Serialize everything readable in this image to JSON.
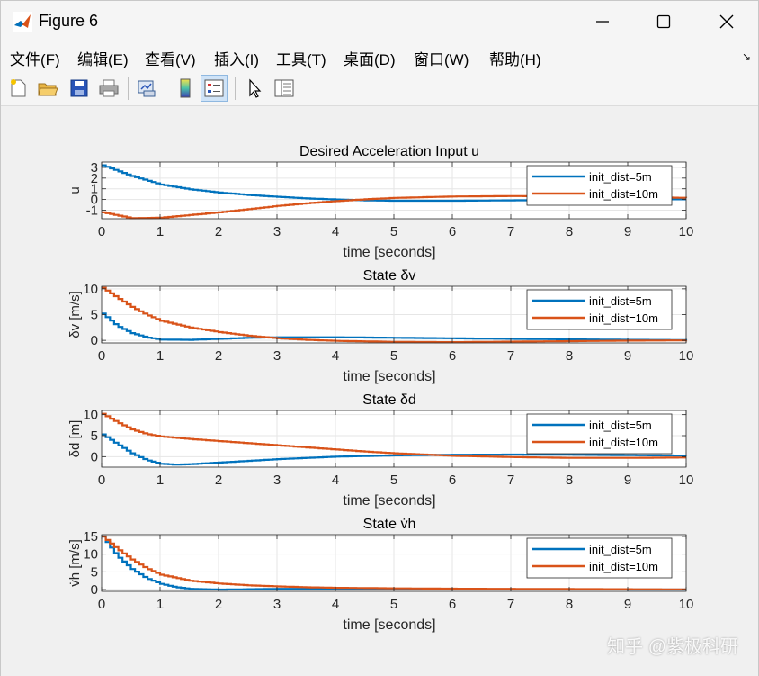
{
  "window": {
    "title": "Figure 6"
  },
  "menu": [
    {
      "label": "文件(F)"
    },
    {
      "label": "编辑(E)"
    },
    {
      "label": "查看(V)"
    },
    {
      "label": "插入(I)"
    },
    {
      "label": "工具(T)"
    },
    {
      "label": "桌面(D)"
    },
    {
      "label": "窗口(W)"
    },
    {
      "label": "帮助(H)"
    }
  ],
  "toolbar": [
    {
      "icon": "new-figure-icon"
    },
    {
      "icon": "open-file-icon"
    },
    {
      "icon": "save-icon"
    },
    {
      "icon": "print-icon"
    },
    {
      "icon": "link-plot-icon"
    },
    {
      "icon": "colorbar-icon"
    },
    {
      "icon": "legend-icon"
    },
    {
      "icon": "edit-plot-pointer-icon"
    },
    {
      "icon": "property-inspector-icon"
    }
  ],
  "watermark": "知乎 @紫极科研",
  "colors": {
    "series1": "#0072BD",
    "series2": "#D95319"
  },
  "chart_data": [
    {
      "type": "line",
      "title": "Desired Acceleration Input u",
      "xlabel": "time [seconds]",
      "ylabel": "u",
      "xlim": [
        0,
        10
      ],
      "ylim": [
        -1.8,
        3.5
      ],
      "yticks": [
        -1,
        0,
        1,
        2,
        3
      ],
      "xticks": [
        0,
        1,
        2,
        3,
        4,
        5,
        6,
        7,
        8,
        9,
        10
      ],
      "grid": true,
      "legend": "top-right",
      "series": [
        {
          "name": "init_dist=5m",
          "x": [
            0,
            0.5,
            1,
            1.5,
            2,
            2.5,
            3,
            3.5,
            4,
            4.5,
            5,
            6,
            7,
            8,
            9,
            10
          ],
          "y": [
            3.2,
            2.2,
            1.4,
            0.95,
            0.65,
            0.42,
            0.25,
            0.1,
            0.0,
            -0.08,
            -0.12,
            -0.12,
            -0.08,
            -0.04,
            0.0,
            0.02
          ]
        },
        {
          "name": "init_dist=10m",
          "x": [
            0,
            0.5,
            1,
            1.5,
            2,
            2.5,
            3,
            3.5,
            4,
            4.5,
            5,
            6,
            7,
            8,
            9,
            10
          ],
          "y": [
            -1.2,
            -1.75,
            -1.7,
            -1.45,
            -1.2,
            -0.9,
            -0.6,
            -0.35,
            -0.15,
            0.02,
            0.15,
            0.28,
            0.32,
            0.3,
            0.25,
            0.15
          ]
        }
      ]
    },
    {
      "type": "line",
      "title": "State δv",
      "xlabel": "time [seconds]",
      "ylabel": "δv [m/s]",
      "xlim": [
        0,
        10
      ],
      "ylim": [
        -0.5,
        10.5
      ],
      "yticks": [
        0,
        5,
        10
      ],
      "xticks": [
        0,
        1,
        2,
        3,
        4,
        5,
        6,
        7,
        8,
        9,
        10
      ],
      "grid": true,
      "legend": "top-right",
      "series": [
        {
          "name": "init_dist=5m",
          "x": [
            0,
            0.25,
            0.5,
            0.75,
            1,
            1.5,
            2,
            2.5,
            3,
            4,
            5,
            6,
            7,
            8,
            9,
            10
          ],
          "y": [
            5.2,
            2.8,
            1.4,
            0.6,
            0.15,
            0.1,
            0.3,
            0.5,
            0.6,
            0.6,
            0.5,
            0.4,
            0.3,
            0.2,
            0.1,
            0.05
          ]
        },
        {
          "name": "init_dist=10m",
          "x": [
            0,
            0.25,
            0.5,
            0.75,
            1,
            1.5,
            2,
            2.5,
            3,
            3.5,
            4,
            5,
            6,
            7,
            8,
            9,
            10
          ],
          "y": [
            10.2,
            8.3,
            6.5,
            5.0,
            3.8,
            2.5,
            1.6,
            0.9,
            0.4,
            0.1,
            -0.1,
            -0.3,
            -0.35,
            -0.25,
            -0.15,
            -0.05,
            0.0
          ]
        }
      ]
    },
    {
      "type": "line",
      "title": "State δd",
      "xlabel": "time [seconds]",
      "ylabel": "δd [m]",
      "xlim": [
        0,
        10
      ],
      "ylim": [
        -2.5,
        11
      ],
      "yticks": [
        0,
        5,
        10
      ],
      "xticks": [
        0,
        1,
        2,
        3,
        4,
        5,
        6,
        7,
        8,
        9,
        10
      ],
      "grid": true,
      "legend": "top-right",
      "series": [
        {
          "name": "init_dist=5m",
          "x": [
            0,
            0.25,
            0.5,
            0.75,
            1,
            1.25,
            1.5,
            2,
            2.5,
            3,
            3.5,
            4,
            5,
            6,
            7,
            8,
            9,
            10
          ],
          "y": [
            5.3,
            3.0,
            0.8,
            -0.8,
            -1.7,
            -1.9,
            -1.8,
            -1.4,
            -1.0,
            -0.6,
            -0.3,
            0.0,
            0.3,
            0.45,
            0.5,
            0.45,
            0.35,
            0.25
          ]
        },
        {
          "name": "init_dist=10m",
          "x": [
            0,
            0.25,
            0.5,
            0.75,
            1,
            1.5,
            2,
            2.5,
            3,
            3.5,
            4,
            4.5,
            5,
            6,
            7,
            8,
            9,
            10
          ],
          "y": [
            10.2,
            8.2,
            6.5,
            5.4,
            4.8,
            4.2,
            3.7,
            3.2,
            2.7,
            2.2,
            1.7,
            1.2,
            0.8,
            0.2,
            -0.1,
            -0.3,
            -0.3,
            -0.2
          ]
        }
      ]
    },
    {
      "type": "line",
      "title": "State v̇h",
      "xlabel": "time [seconds]",
      "ylabel": "v̇h [m/s]",
      "xlim": [
        0,
        10
      ],
      "ylim": [
        -0.5,
        15.5
      ],
      "yticks": [
        0,
        5,
        10,
        15
      ],
      "xticks": [
        0,
        1,
        2,
        3,
        4,
        5,
        6,
        7,
        8,
        9,
        10
      ],
      "grid": true,
      "legend": "top-right",
      "series": [
        {
          "name": "init_dist=5m",
          "x": [
            0,
            0.25,
            0.5,
            0.75,
            1,
            1.25,
            1.5,
            2,
            2.5,
            3,
            4,
            5,
            6,
            7,
            8,
            9,
            10
          ],
          "y": [
            15,
            9.5,
            5.8,
            3.2,
            1.6,
            0.7,
            0.2,
            0.0,
            0.1,
            0.2,
            0.25,
            0.2,
            0.15,
            0.1,
            0.05,
            0.02,
            0.0
          ]
        },
        {
          "name": "init_dist=10m",
          "x": [
            0,
            0.25,
            0.5,
            0.75,
            1,
            1.5,
            2,
            2.5,
            3,
            3.5,
            4,
            5,
            6,
            7,
            8,
            9,
            10
          ],
          "y": [
            15,
            11.5,
            8.5,
            6.0,
            4.2,
            2.5,
            1.7,
            1.2,
            0.9,
            0.65,
            0.5,
            0.35,
            0.25,
            0.2,
            0.15,
            0.1,
            0.05
          ]
        }
      ]
    }
  ]
}
